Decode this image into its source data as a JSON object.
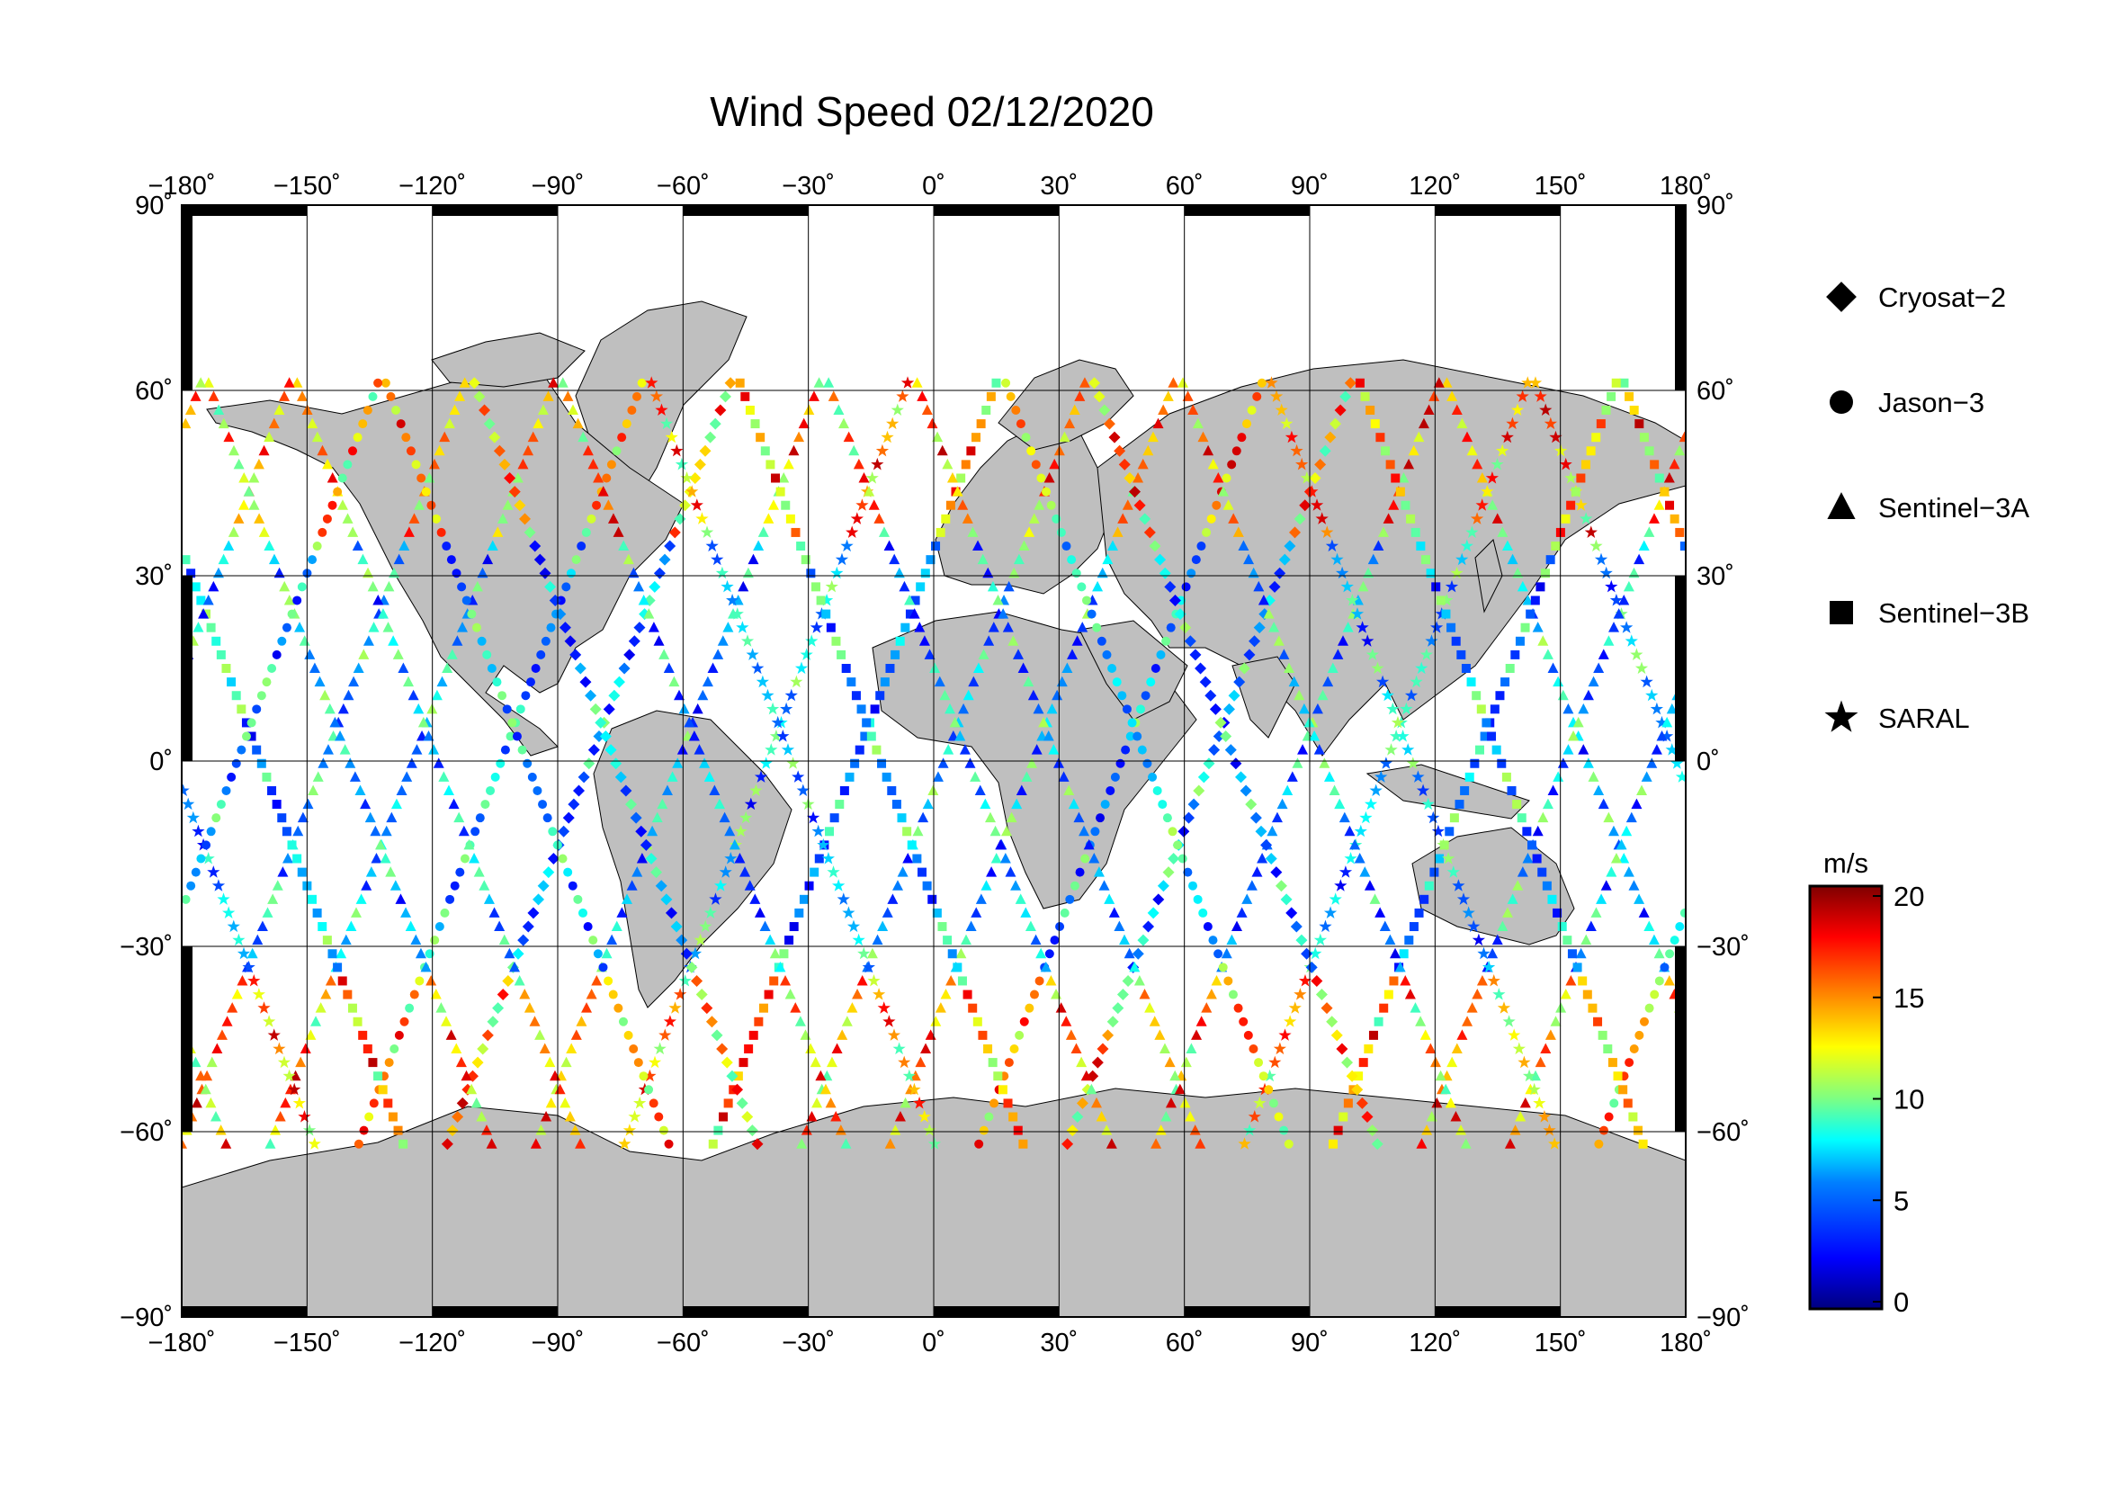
{
  "title": "Wind Speed 02/12/2020",
  "lon_ticks": [
    "−180˚",
    "−150˚",
    "−120˚",
    "−90˚",
    "−60˚",
    "−30˚",
    "0˚",
    "30˚",
    "60˚",
    "90˚",
    "120˚",
    "150˚",
    "180˚"
  ],
  "lat_ticks": [
    "90˚",
    "60˚",
    "30˚",
    "0˚",
    "−30˚",
    "−60˚",
    "−90˚"
  ],
  "legend": [
    {
      "label": "Cryosat−2",
      "symbol": "diamond"
    },
    {
      "label": "Jason−3",
      "symbol": "circle"
    },
    {
      "label": "Sentinel−3A",
      "symbol": "triangle"
    },
    {
      "label": "Sentinel−3B",
      "symbol": "square"
    },
    {
      "label": "SARAL",
      "symbol": "star"
    }
  ],
  "colorbar": {
    "unit": "m/s",
    "ticks": [
      "20",
      "15",
      "10",
      "5",
      "0"
    ],
    "range": [
      0,
      20
    ],
    "colors": [
      "#00007f",
      "#0000ff",
      "#0080ff",
      "#00ffff",
      "#80ff80",
      "#ffff00",
      "#ff8000",
      "#ff0000",
      "#7f0000"
    ]
  },
  "map": {
    "land_color": "#bfbfbf",
    "ocean_color": "#ffffff",
    "projection": "equirectangular",
    "lon_range": [
      -180,
      180
    ],
    "lat_range": [
      -90,
      90
    ]
  }
}
